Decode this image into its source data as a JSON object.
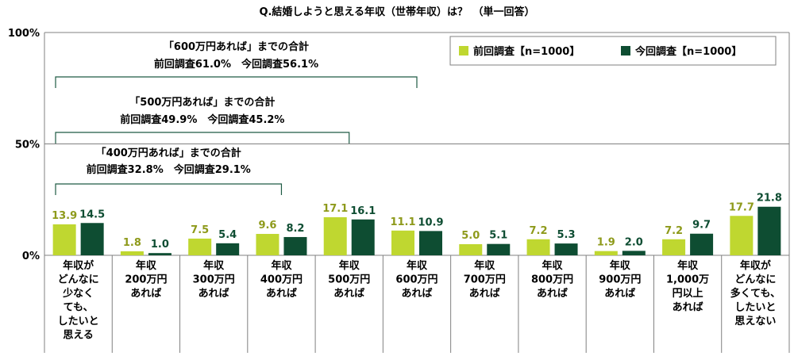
{
  "chart_data": {
    "type": "bar",
    "title": "Q.結婚しようと思える年収（世帯年収）は？　（単一回答）",
    "categories": [
      [
        "年収が",
        "どんなに",
        "少なく",
        "ても、",
        "したいと",
        "思える"
      ],
      [
        "年収",
        "200万円",
        "あれば"
      ],
      [
        "年収",
        "300万円",
        "あれば"
      ],
      [
        "年収",
        "400万円",
        "あれば"
      ],
      [
        "年収",
        "500万円",
        "あれば"
      ],
      [
        "年収",
        "600万円",
        "あれば"
      ],
      [
        "年収",
        "700万円",
        "あれば"
      ],
      [
        "年収",
        "800万円",
        "あれば"
      ],
      [
        "年収",
        "900万円",
        "あれば"
      ],
      [
        "年収",
        "1,000万",
        "円以上",
        "あれば"
      ],
      [
        "年収が",
        "どんなに",
        "多くても、",
        "したいと",
        "思えない"
      ]
    ],
    "series": [
      {
        "name": "前回調査【n=1000】",
        "color": "#BFD730",
        "values": [
          13.9,
          1.8,
          7.5,
          9.6,
          17.1,
          11.1,
          5.0,
          7.2,
          1.9,
          7.2,
          17.7
        ],
        "labels": [
          "13.9",
          "1.8",
          "7.5",
          "9.6",
          "17.1",
          "11.1",
          "5.0",
          "7.2",
          "1.9",
          "7.2",
          "17.7"
        ]
      },
      {
        "name": "今回調査【n=1000】",
        "color": "#0E4D32",
        "values": [
          14.5,
          1.0,
          5.4,
          8.2,
          16.1,
          10.9,
          5.1,
          5.3,
          2.0,
          9.7,
          21.8
        ],
        "labels": [
          "14.5",
          "1.0",
          "5.4",
          "8.2",
          "16.1",
          "10.9",
          "5.1",
          "5.3",
          "2.0",
          "9.7",
          "21.8"
        ]
      }
    ],
    "ylim": [
      0,
      100
    ],
    "yticks": [
      {
        "value": 0,
        "label": "0%"
      },
      {
        "value": 50,
        "label": "50%"
      },
      {
        "value": 100,
        "label": "100%"
      }
    ],
    "legend_position": "top-right",
    "annotations": [
      {
        "line1": "「600万円あれば」までの合計",
        "line2": "前回調査61.0%　今回調査56.1%",
        "from_category": 0,
        "to_category": 5
      },
      {
        "line1": "「500万円あれば」までの合計",
        "line2": "前回調査49.9%　今回調査45.2%",
        "from_category": 0,
        "to_category": 4
      },
      {
        "line1": "「400万円あれば」までの合計",
        "line2": "前回調査32.8%　今回調査29.1%",
        "from_category": 0,
        "to_category": 3
      }
    ]
  }
}
